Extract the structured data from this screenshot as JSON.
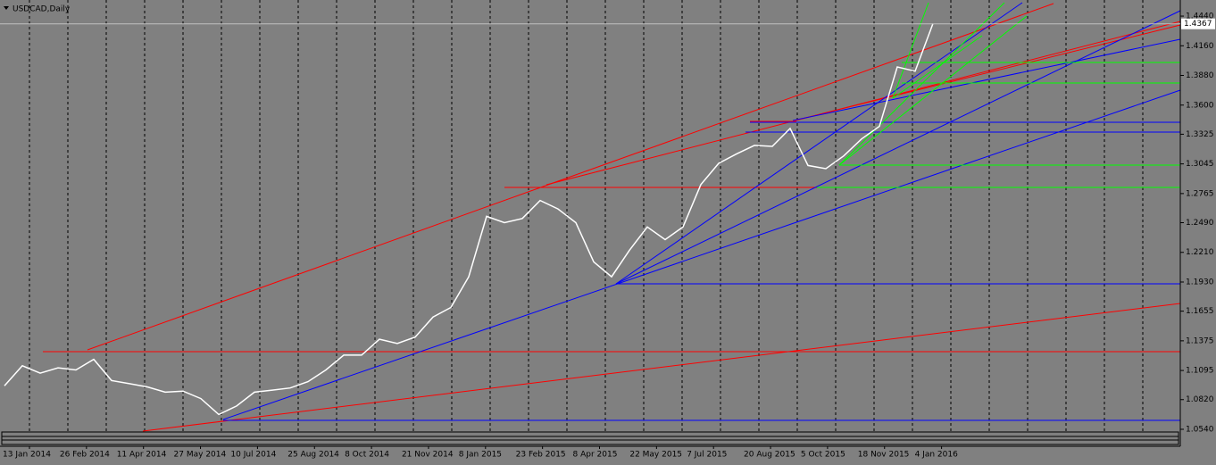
{
  "chart_data": {
    "type": "line",
    "title": "USDCAD,Daily",
    "values": [
      1.095,
      1.114,
      1.107,
      1.112,
      1.11,
      1.12,
      1.1,
      1.097,
      1.094,
      1.089,
      1.09,
      1.083,
      1.068,
      1.076,
      1.089,
      1.091,
      1.093,
      1.099,
      1.11,
      1.124,
      1.124,
      1.139,
      1.135,
      1.141,
      1.16,
      1.169,
      1.198,
      1.255,
      1.249,
      1.253,
      1.27,
      1.262,
      1.249,
      1.212,
      1.198,
      1.223,
      1.245,
      1.233,
      1.245,
      1.285,
      1.305,
      1.314,
      1.322,
      1.321,
      1.338,
      1.303,
      1.3,
      1.312,
      1.328,
      1.34,
      1.396,
      1.392,
      1.437
    ],
    "color": "#ffffff",
    "current_price": 1.4367,
    "ylim": [
      1.0523,
      1.4592
    ],
    "yticks": [
      {
        "value": 1.444,
        "label": "1.4440"
      },
      {
        "value": 1.416,
        "label": "1.4160"
      },
      {
        "value": 1.388,
        "label": "1.3880"
      },
      {
        "value": 1.36,
        "label": "1.3600"
      },
      1.3325,
      1.3045,
      1.2765,
      {
        "value": 1.249,
        "label": "1.2490"
      },
      {
        "value": 1.221,
        "label": "1.2210"
      },
      {
        "value": 1.193,
        "label": "1.1930"
      },
      1.1655,
      1.1375,
      1.1095,
      {
        "value": 1.082,
        "label": "1.0820"
      },
      {
        "value": 1.054,
        "label": "1.0540"
      }
    ],
    "x_labels": [
      "13 Jan 2014",
      "26 Feb 2014",
      "11 Apr 2014",
      "27 May 2014",
      "10 Jul 2014",
      "25 Aug 2014",
      "8 Oct 2014",
      "21 Nov 2014",
      "8 Jan 2015",
      "23 Feb 2015",
      "8 Apr 2015",
      "22 May 2015",
      "7 Jul 2015",
      "20 Aug 2015",
      "5 Oct 2015",
      "18 Nov 2015",
      "4 Jan 2016"
    ]
  }
}
